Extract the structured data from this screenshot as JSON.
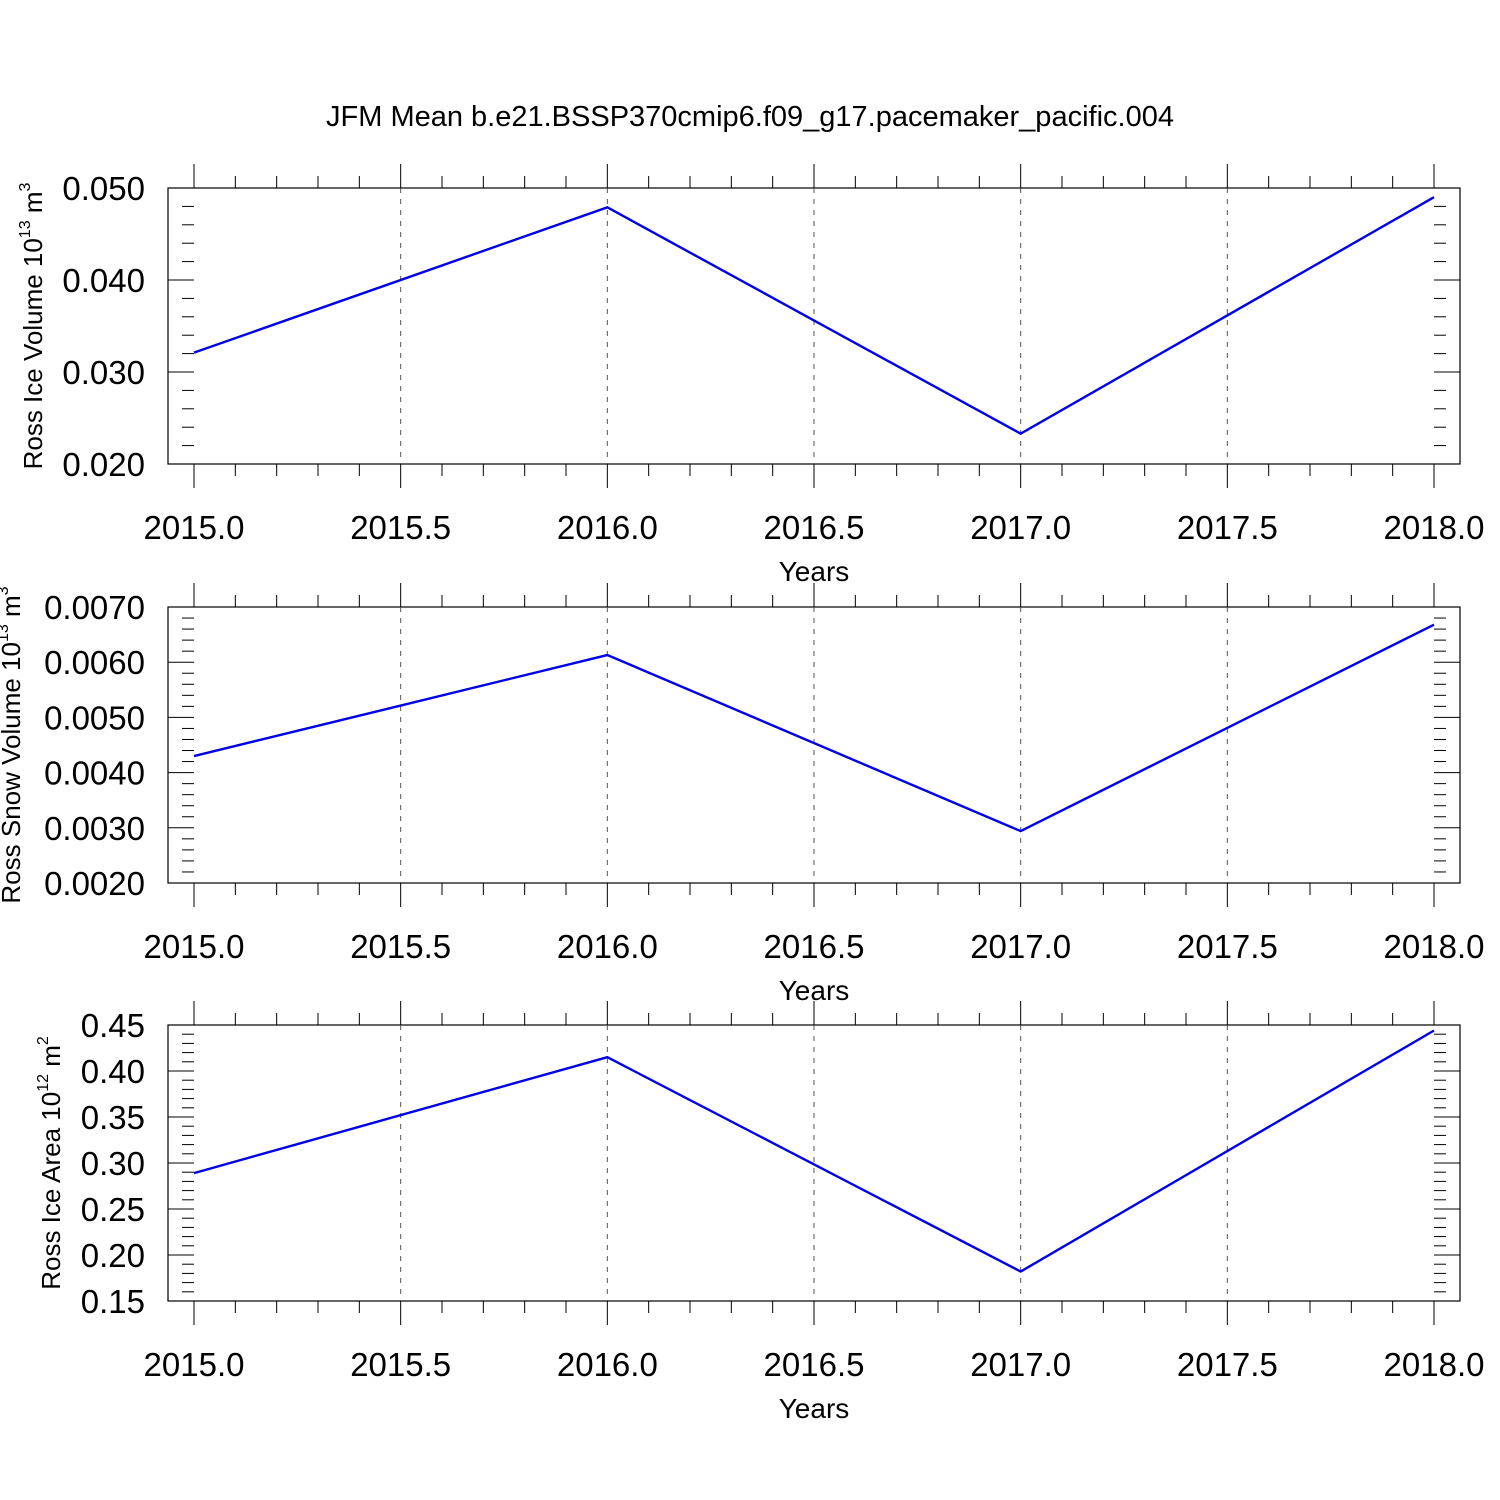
{
  "figure": {
    "title": "JFM Mean b.e21.BSSP370cmip6.f09_g17.pacemaker_pacific.004"
  },
  "chart_data": [
    {
      "type": "line",
      "ylabel": {
        "prefix": "Ross Ice Volume 10",
        "exponent": "13",
        "unit": " m",
        "unit_exponent": "3"
      },
      "xlabel": "Years",
      "xlim": [
        2015.0,
        2018.0
      ],
      "ylim": [
        0.02,
        0.05
      ],
      "x_ticks": [
        "2015.0",
        "2015.5",
        "2016.0",
        "2016.5",
        "2017.0",
        "2017.5",
        "2018.0"
      ],
      "y_ticks": [
        "0.020",
        "0.030",
        "0.040",
        "0.050"
      ],
      "grid": "x-dashed",
      "series": [
        {
          "color": "#0000ee",
          "x": [
            2015,
            2016,
            2017,
            2018
          ],
          "y": [
            0.0321,
            0.0479,
            0.0233,
            0.049
          ]
        }
      ]
    },
    {
      "type": "line",
      "ylabel": {
        "prefix": "Ross Snow Volume 10",
        "exponent": "13",
        "unit": " m",
        "unit_exponent": "3"
      },
      "xlabel": "Years",
      "xlim": [
        2015.0,
        2018.0
      ],
      "ylim": [
        0.002,
        0.007
      ],
      "x_ticks": [
        "2015.0",
        "2015.5",
        "2016.0",
        "2016.5",
        "2017.0",
        "2017.5",
        "2018.0"
      ],
      "y_ticks": [
        "0.0020",
        "0.0030",
        "0.0040",
        "0.0050",
        "0.0060",
        "0.0070"
      ],
      "grid": "x-dashed",
      "series": [
        {
          "color": "#0000ee",
          "x": [
            2015,
            2016,
            2017,
            2018
          ],
          "y": [
            0.0043,
            0.00613,
            0.00294,
            0.00668
          ]
        }
      ]
    },
    {
      "type": "line",
      "ylabel": {
        "prefix": "Ross Ice Area 10",
        "exponent": "12",
        "unit": " m",
        "unit_exponent": "2"
      },
      "xlabel": "Years",
      "xlim": [
        2015.0,
        2018.0
      ],
      "ylim": [
        0.15,
        0.45
      ],
      "x_ticks": [
        "2015.0",
        "2015.5",
        "2016.0",
        "2016.5",
        "2017.0",
        "2017.5",
        "2018.0"
      ],
      "y_ticks": [
        "0.15",
        "0.20",
        "0.25",
        "0.30",
        "0.35",
        "0.40",
        "0.45"
      ],
      "grid": "x-dashed",
      "series": [
        {
          "color": "#0000ee",
          "x": [
            2015,
            2016,
            2017,
            2018
          ],
          "y": [
            0.289,
            0.415,
            0.182,
            0.444
          ]
        }
      ]
    }
  ]
}
